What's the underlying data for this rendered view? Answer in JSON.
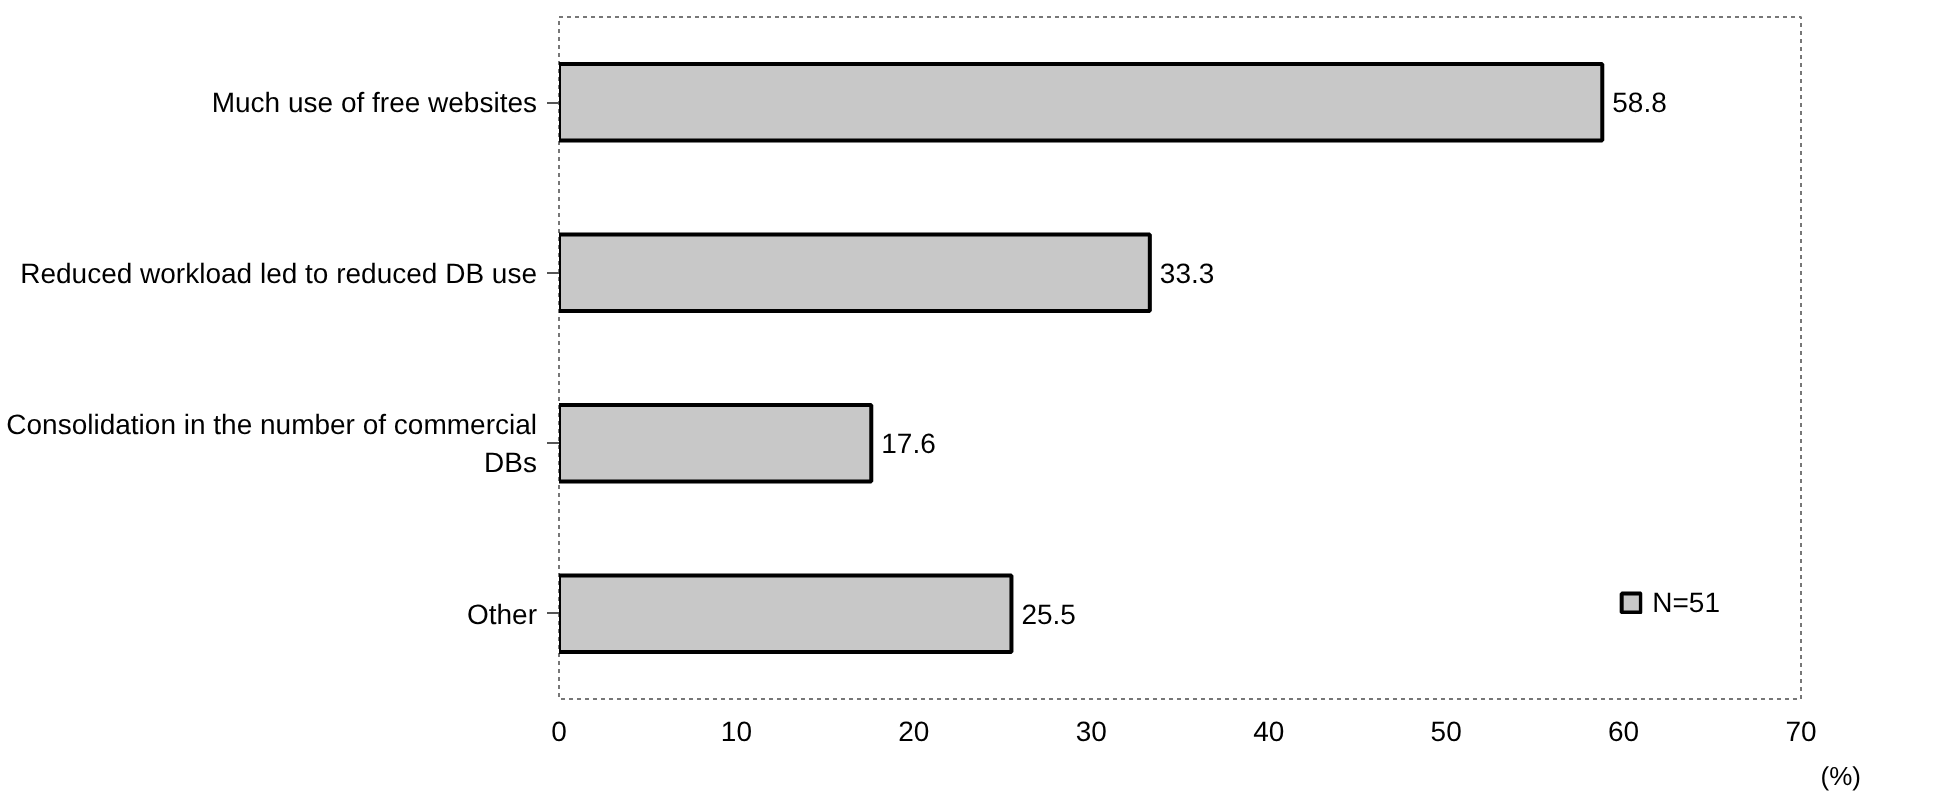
{
  "chart_data": {
    "type": "bar",
    "orientation": "horizontal",
    "categories": [
      "Much use of free websites",
      "Reduced workload led to reduced DB use",
      "Consolidation in the number of commercial DBs",
      "Other"
    ],
    "series": [
      {
        "name": "N=51",
        "color": "#c8c8c8",
        "values": [
          58.8,
          33.3,
          17.6,
          25.5
        ]
      }
    ],
    "xlim": [
      0,
      70
    ],
    "xticks": [
      0,
      10,
      20,
      30,
      40,
      50,
      60,
      70
    ],
    "xlabel": "(%)",
    "data_labels": true,
    "grid": false,
    "legend": "bottom right"
  }
}
